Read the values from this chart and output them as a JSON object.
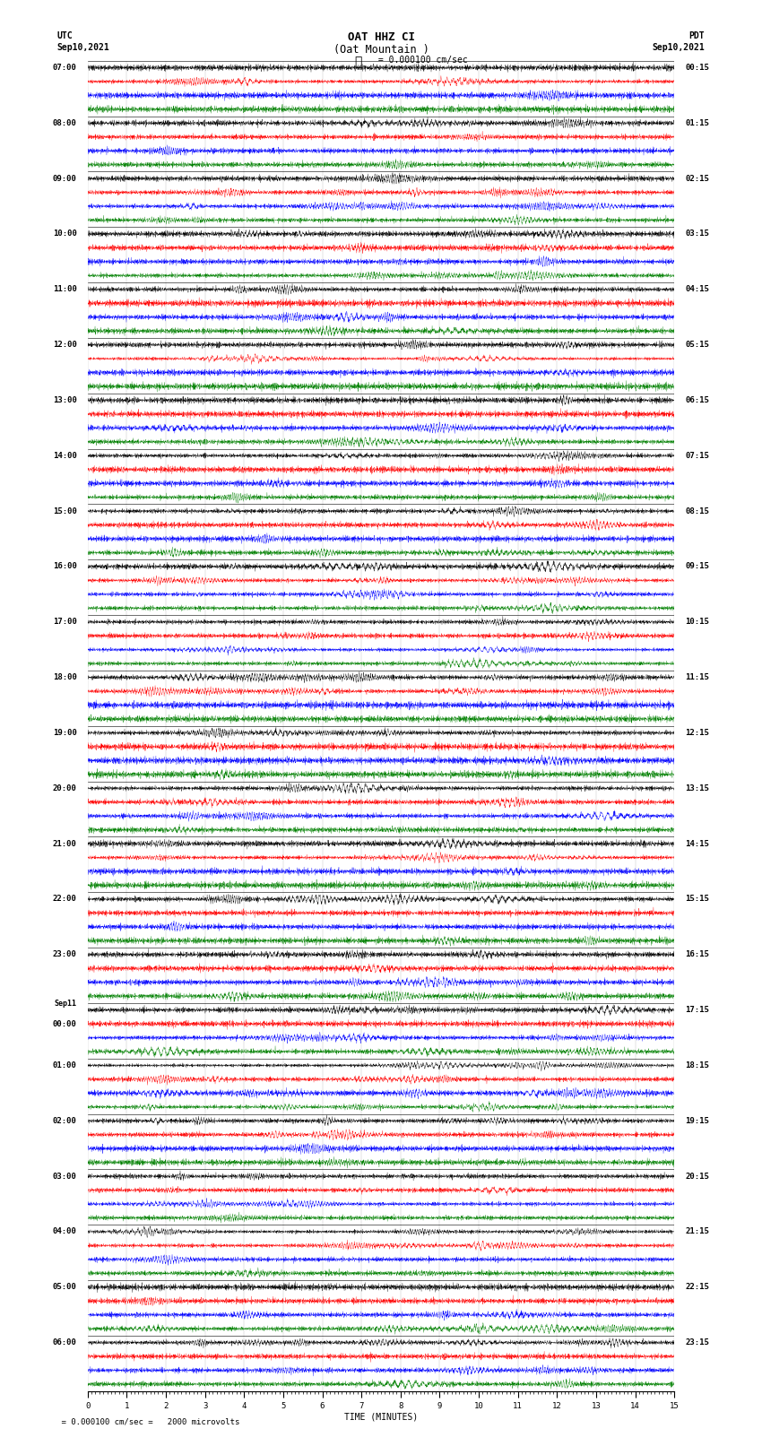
{
  "title_line1": "OAT HHZ CI",
  "title_line2": "(Oat Mountain )",
  "scale_label": "= 0.000100 cm/sec",
  "utc_label": "UTC",
  "utc_date": "Sep10,2021",
  "pdt_label": "PDT",
  "pdt_date": "Sep10,2021",
  "bottom_note": "  = 0.000100 cm/sec =   2000 microvolts",
  "xlabel": "TIME (MINUTES)",
  "left_times": [
    "07:00",
    "",
    "",
    "",
    "08:00",
    "",
    "",
    "",
    "09:00",
    "",
    "",
    "",
    "10:00",
    "",
    "",
    "",
    "11:00",
    "",
    "",
    "",
    "12:00",
    "",
    "",
    "",
    "13:00",
    "",
    "",
    "",
    "14:00",
    "",
    "",
    "",
    "15:00",
    "",
    "",
    "",
    "16:00",
    "",
    "",
    "",
    "17:00",
    "",
    "",
    "",
    "18:00",
    "",
    "",
    "",
    "19:00",
    "",
    "",
    "",
    "20:00",
    "",
    "",
    "",
    "21:00",
    "",
    "",
    "",
    "22:00",
    "",
    "",
    "",
    "23:00",
    "",
    "",
    "",
    "Sep11",
    "00:00",
    "",
    "",
    "01:00",
    "",
    "",
    "",
    "02:00",
    "",
    "",
    "",
    "03:00",
    "",
    "",
    "",
    "04:00",
    "",
    "",
    "",
    "05:00",
    "",
    "",
    "",
    "06:00",
    "",
    "",
    ""
  ],
  "right_times": [
    "00:15",
    "",
    "",
    "",
    "01:15",
    "",
    "",
    "",
    "02:15",
    "",
    "",
    "",
    "03:15",
    "",
    "",
    "",
    "04:15",
    "",
    "",
    "",
    "05:15",
    "",
    "",
    "",
    "06:15",
    "",
    "",
    "",
    "07:15",
    "",
    "",
    "",
    "08:15",
    "",
    "",
    "",
    "09:15",
    "",
    "",
    "",
    "10:15",
    "",
    "",
    "",
    "11:15",
    "",
    "",
    "",
    "12:15",
    "",
    "",
    "",
    "13:15",
    "",
    "",
    "",
    "14:15",
    "",
    "",
    "",
    "15:15",
    "",
    "",
    "",
    "16:15",
    "",
    "",
    "",
    "17:15",
    "",
    "",
    "",
    "18:15",
    "",
    "",
    "",
    "19:15",
    "",
    "",
    "",
    "20:15",
    "",
    "",
    "",
    "21:15",
    "",
    "",
    "",
    "22:15",
    "",
    "",
    "",
    "23:15",
    "",
    "",
    ""
  ],
  "sep11_row": 65,
  "colors": [
    "black",
    "red",
    "blue",
    "green"
  ],
  "num_rows": 96,
  "time_minutes": 15,
  "bg_color": "white",
  "trace_amplitude": 0.42,
  "title_fontsize": 9,
  "label_fontsize": 7,
  "tick_fontsize": 6.5
}
